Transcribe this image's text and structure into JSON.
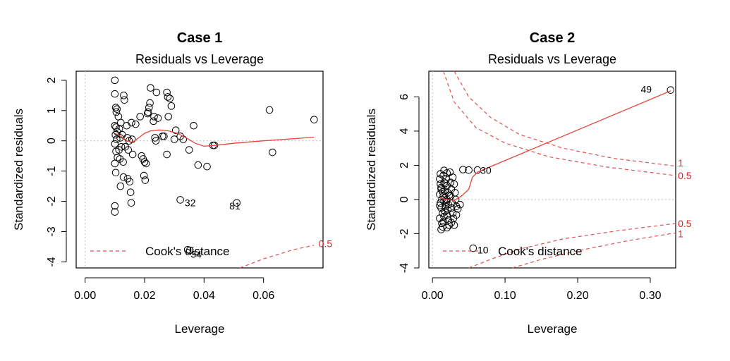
{
  "chart_data": [
    {
      "type": "scatter",
      "title": "Case 1",
      "subtitle": "Residuals vs Leverage",
      "xlabel": "Leverage",
      "ylabel": "Standardized residuals",
      "xlim": [
        -0.003,
        0.08
      ],
      "ylim": [
        -4.2,
        2.3
      ],
      "xticks": [
        "0.00",
        "0.02",
        "0.04",
        "0.06"
      ],
      "yticks": [
        "-4",
        "-3",
        "-2",
        "-1",
        "0",
        "1",
        "2"
      ],
      "legend": {
        "label": "Cook's distance",
        "placement": "bottom-left"
      },
      "cook_labels": [
        "0.5"
      ],
      "point_labels": [
        "32",
        "81",
        "34"
      ],
      "points": [
        [
          0.01,
          2.0
        ],
        [
          0.01,
          1.55
        ],
        [
          0.0103,
          1.1
        ],
        [
          0.0107,
          1.05
        ],
        [
          0.0105,
          0.95
        ],
        [
          0.01,
          0.5
        ],
        [
          0.0104,
          0.45
        ],
        [
          0.0108,
          0.3
        ],
        [
          0.0102,
          0.2
        ],
        [
          0.0106,
          0.05
        ],
        [
          0.01,
          -0.1
        ],
        [
          0.0104,
          -0.35
        ],
        [
          0.0109,
          -0.55
        ],
        [
          0.01,
          -0.75
        ],
        [
          0.0103,
          -1.05
        ],
        [
          0.01,
          -2.15
        ],
        [
          0.01,
          -2.35
        ],
        [
          0.0112,
          0.8
        ],
        [
          0.0115,
          0.4
        ],
        [
          0.0118,
          0.1
        ],
        [
          0.0114,
          -0.3
        ],
        [
          0.0117,
          -0.6
        ],
        [
          0.0119,
          -1.5
        ],
        [
          0.012,
          0.6
        ],
        [
          0.0125,
          0.2
        ],
        [
          0.0122,
          -0.2
        ],
        [
          0.0128,
          -0.7
        ],
        [
          0.013,
          1.5
        ],
        [
          0.0132,
          1.35
        ],
        [
          0.0129,
          -1.2
        ],
        [
          0.0135,
          -0.2
        ],
        [
          0.014,
          0.5
        ],
        [
          0.0142,
          0.1
        ],
        [
          0.0145,
          -0.3
        ],
        [
          0.0143,
          -1.25
        ],
        [
          0.0148,
          0.0
        ],
        [
          0.015,
          -1.35
        ],
        [
          0.0153,
          -1.7
        ],
        [
          0.0155,
          -2.05
        ],
        [
          0.0156,
          0.6
        ],
        [
          0.0158,
          0.05
        ],
        [
          0.016,
          -0.45
        ],
        [
          0.017,
          0.55
        ],
        [
          0.0185,
          0.8
        ],
        [
          0.019,
          -0.5
        ],
        [
          0.0195,
          -0.6
        ],
        [
          0.0198,
          -1.15
        ],
        [
          0.02,
          -0.7
        ],
        [
          0.0205,
          -0.75
        ],
        [
          0.0202,
          -1.3
        ],
        [
          0.021,
          0.9
        ],
        [
          0.0212,
          0.95
        ],
        [
          0.0215,
          1.1
        ],
        [
          0.0218,
          1.25
        ],
        [
          0.022,
          1.75
        ],
        [
          0.023,
          0.65
        ],
        [
          0.0232,
          0.8
        ],
        [
          0.0235,
          0.1
        ],
        [
          0.0238,
          0.0
        ],
        [
          0.024,
          1.6
        ],
        [
          0.0245,
          0.75
        ],
        [
          0.026,
          0.15
        ],
        [
          0.0265,
          0.15
        ],
        [
          0.0275,
          1.6
        ],
        [
          0.028,
          0.8
        ],
        [
          0.0278,
          1.45
        ],
        [
          0.0285,
          1.4
        ],
        [
          0.029,
          1.15
        ],
        [
          0.03,
          0.05
        ],
        [
          0.0305,
          0.35
        ],
        [
          0.0275,
          -0.45
        ],
        [
          0.032,
          0.15
        ],
        [
          0.033,
          0.05
        ],
        [
          0.035,
          -0.3
        ],
        [
          0.0365,
          0.5
        ],
        [
          0.038,
          -0.8
        ],
        [
          0.041,
          -0.85
        ],
        [
          0.043,
          -0.15
        ],
        [
          0.0435,
          -0.15
        ],
        [
          0.062,
          1.02
        ],
        [
          0.063,
          -0.38
        ],
        [
          0.077,
          0.7
        ],
        [
          0.032,
          -1.95
        ],
        [
          0.051,
          -2.05
        ],
        [
          0.0345,
          -3.6
        ],
        [
          0.0352,
          -3.62
        ]
      ],
      "smooth": [
        [
          0.01,
          0.25
        ],
        [
          0.012,
          0.15
        ],
        [
          0.014,
          0.0
        ],
        [
          0.016,
          -0.05
        ],
        [
          0.018,
          0.1
        ],
        [
          0.02,
          0.25
        ],
        [
          0.022,
          0.33
        ],
        [
          0.025,
          0.36
        ],
        [
          0.028,
          0.33
        ],
        [
          0.031,
          0.25
        ],
        [
          0.034,
          0.1
        ],
        [
          0.037,
          -0.08
        ],
        [
          0.04,
          -0.18
        ],
        [
          0.0435,
          -0.15
        ],
        [
          0.05,
          -0.08
        ],
        [
          0.06,
          0.0
        ],
        [
          0.077,
          0.12
        ]
      ],
      "cook_curves": [
        {
          "level": 0.5,
          "sign": -1,
          "pts": [
            [
              0.052,
              -4.2
            ],
            [
              0.06,
              -3.9
            ],
            [
              0.07,
              -3.6
            ],
            [
              0.077,
              -3.45
            ]
          ]
        }
      ]
    },
    {
      "type": "scatter",
      "title": "Case 2",
      "subtitle": "Residuals vs Leverage",
      "xlabel": "Leverage",
      "ylabel": "Standardized residuals",
      "xlim": [
        -0.005,
        0.335
      ],
      "ylim": [
        -4,
        7.5
      ],
      "xticks": [
        "0.00",
        "0.10",
        "0.20",
        "0.30"
      ],
      "yticks": [
        "-4",
        "-2",
        "0",
        "2",
        "4",
        "6"
      ],
      "legend": {
        "label": "Cook's distance",
        "placement": "bottom-left"
      },
      "cook_labels": [
        "1",
        "0.5",
        "0.5",
        "1"
      ],
      "point_labels": [
        "49",
        "30",
        "10"
      ],
      "points": [
        [
          0.01,
          1.2
        ],
        [
          0.011,
          0.9
        ],
        [
          0.012,
          0.6
        ],
        [
          0.01,
          0.3
        ],
        [
          0.013,
          0.0
        ],
        [
          0.011,
          -0.2
        ],
        [
          0.012,
          -0.5
        ],
        [
          0.014,
          -0.8
        ],
        [
          0.01,
          -1.1
        ],
        [
          0.013,
          -1.4
        ],
        [
          0.015,
          1.4
        ],
        [
          0.016,
          1.0
        ],
        [
          0.017,
          0.5
        ],
        [
          0.015,
          0.2
        ],
        [
          0.016,
          -0.1
        ],
        [
          0.018,
          -0.4
        ],
        [
          0.017,
          -0.7
        ],
        [
          0.016,
          -1.0
        ],
        [
          0.015,
          -1.3
        ],
        [
          0.014,
          -1.6
        ],
        [
          0.019,
          1.2
        ],
        [
          0.02,
          0.8
        ],
        [
          0.021,
          0.4
        ],
        [
          0.02,
          0.0
        ],
        [
          0.022,
          -0.3
        ],
        [
          0.021,
          -0.6
        ],
        [
          0.02,
          -0.9
        ],
        [
          0.022,
          -1.2
        ],
        [
          0.023,
          -1.5
        ],
        [
          0.024,
          1.6
        ],
        [
          0.025,
          1.0
        ],
        [
          0.026,
          0.6
        ],
        [
          0.025,
          0.2
        ],
        [
          0.027,
          -0.2
        ],
        [
          0.026,
          -0.5
        ],
        [
          0.028,
          -0.8
        ],
        [
          0.029,
          -1.1
        ],
        [
          0.03,
          -1.5
        ],
        [
          0.03,
          0.9
        ],
        [
          0.031,
          0.4
        ],
        [
          0.032,
          0.0
        ],
        [
          0.033,
          -0.4
        ],
        [
          0.012,
          0.7
        ],
        [
          0.018,
          0.95
        ],
        [
          0.01,
          -0.35
        ],
        [
          0.014,
          0.45
        ],
        [
          0.019,
          -0.15
        ],
        [
          0.023,
          0.25
        ],
        [
          0.011,
          1.5
        ],
        [
          0.016,
          1.7
        ],
        [
          0.012,
          -1.75
        ],
        [
          0.02,
          -1.65
        ],
        [
          0.026,
          -1.35
        ],
        [
          0.02,
          1.55
        ],
        [
          0.028,
          1.3
        ],
        [
          0.033,
          -0.9
        ],
        [
          0.035,
          -0.55
        ],
        [
          0.038,
          -0.3
        ],
        [
          0.042,
          1.75
        ],
        [
          0.05,
          1.72
        ],
        [
          0.062,
          1.72
        ],
        [
          0.056,
          -2.85
        ],
        [
          0.328,
          6.4
        ]
      ],
      "smooth": [
        [
          0.01,
          0.1
        ],
        [
          0.02,
          0.0
        ],
        [
          0.03,
          -0.05
        ],
        [
          0.04,
          0.2
        ],
        [
          0.05,
          0.6
        ],
        [
          0.055,
          1.3
        ],
        [
          0.062,
          1.6
        ],
        [
          0.328,
          6.35
        ]
      ],
      "cook_curves": [
        {
          "level": 1,
          "sign": 1,
          "pts": [
            [
              0.03,
              7.5
            ],
            [
              0.05,
              6.0
            ],
            [
              0.08,
              4.8
            ],
            [
              0.12,
              3.8
            ],
            [
              0.18,
              3.0
            ],
            [
              0.25,
              2.4
            ],
            [
              0.335,
              1.95
            ]
          ]
        },
        {
          "level": 0.5,
          "sign": 1,
          "pts": [
            [
              0.015,
              7.5
            ],
            [
              0.03,
              5.7
            ],
            [
              0.06,
              4.2
            ],
            [
              0.1,
              3.3
            ],
            [
              0.16,
              2.5
            ],
            [
              0.24,
              1.9
            ],
            [
              0.335,
              1.4
            ]
          ]
        },
        {
          "level": 0.5,
          "sign": -1,
          "pts": [
            [
              0.05,
              -4.0
            ],
            [
              0.08,
              -3.5
            ],
            [
              0.12,
              -2.9
            ],
            [
              0.18,
              -2.3
            ],
            [
              0.26,
              -1.8
            ],
            [
              0.335,
              -1.4
            ]
          ]
        },
        {
          "level": 1,
          "sign": -1,
          "pts": [
            [
              0.11,
              -4.0
            ],
            [
              0.15,
              -3.5
            ],
            [
              0.2,
              -3.0
            ],
            [
              0.27,
              -2.4
            ],
            [
              0.335,
              -1.95
            ]
          ]
        }
      ]
    }
  ]
}
